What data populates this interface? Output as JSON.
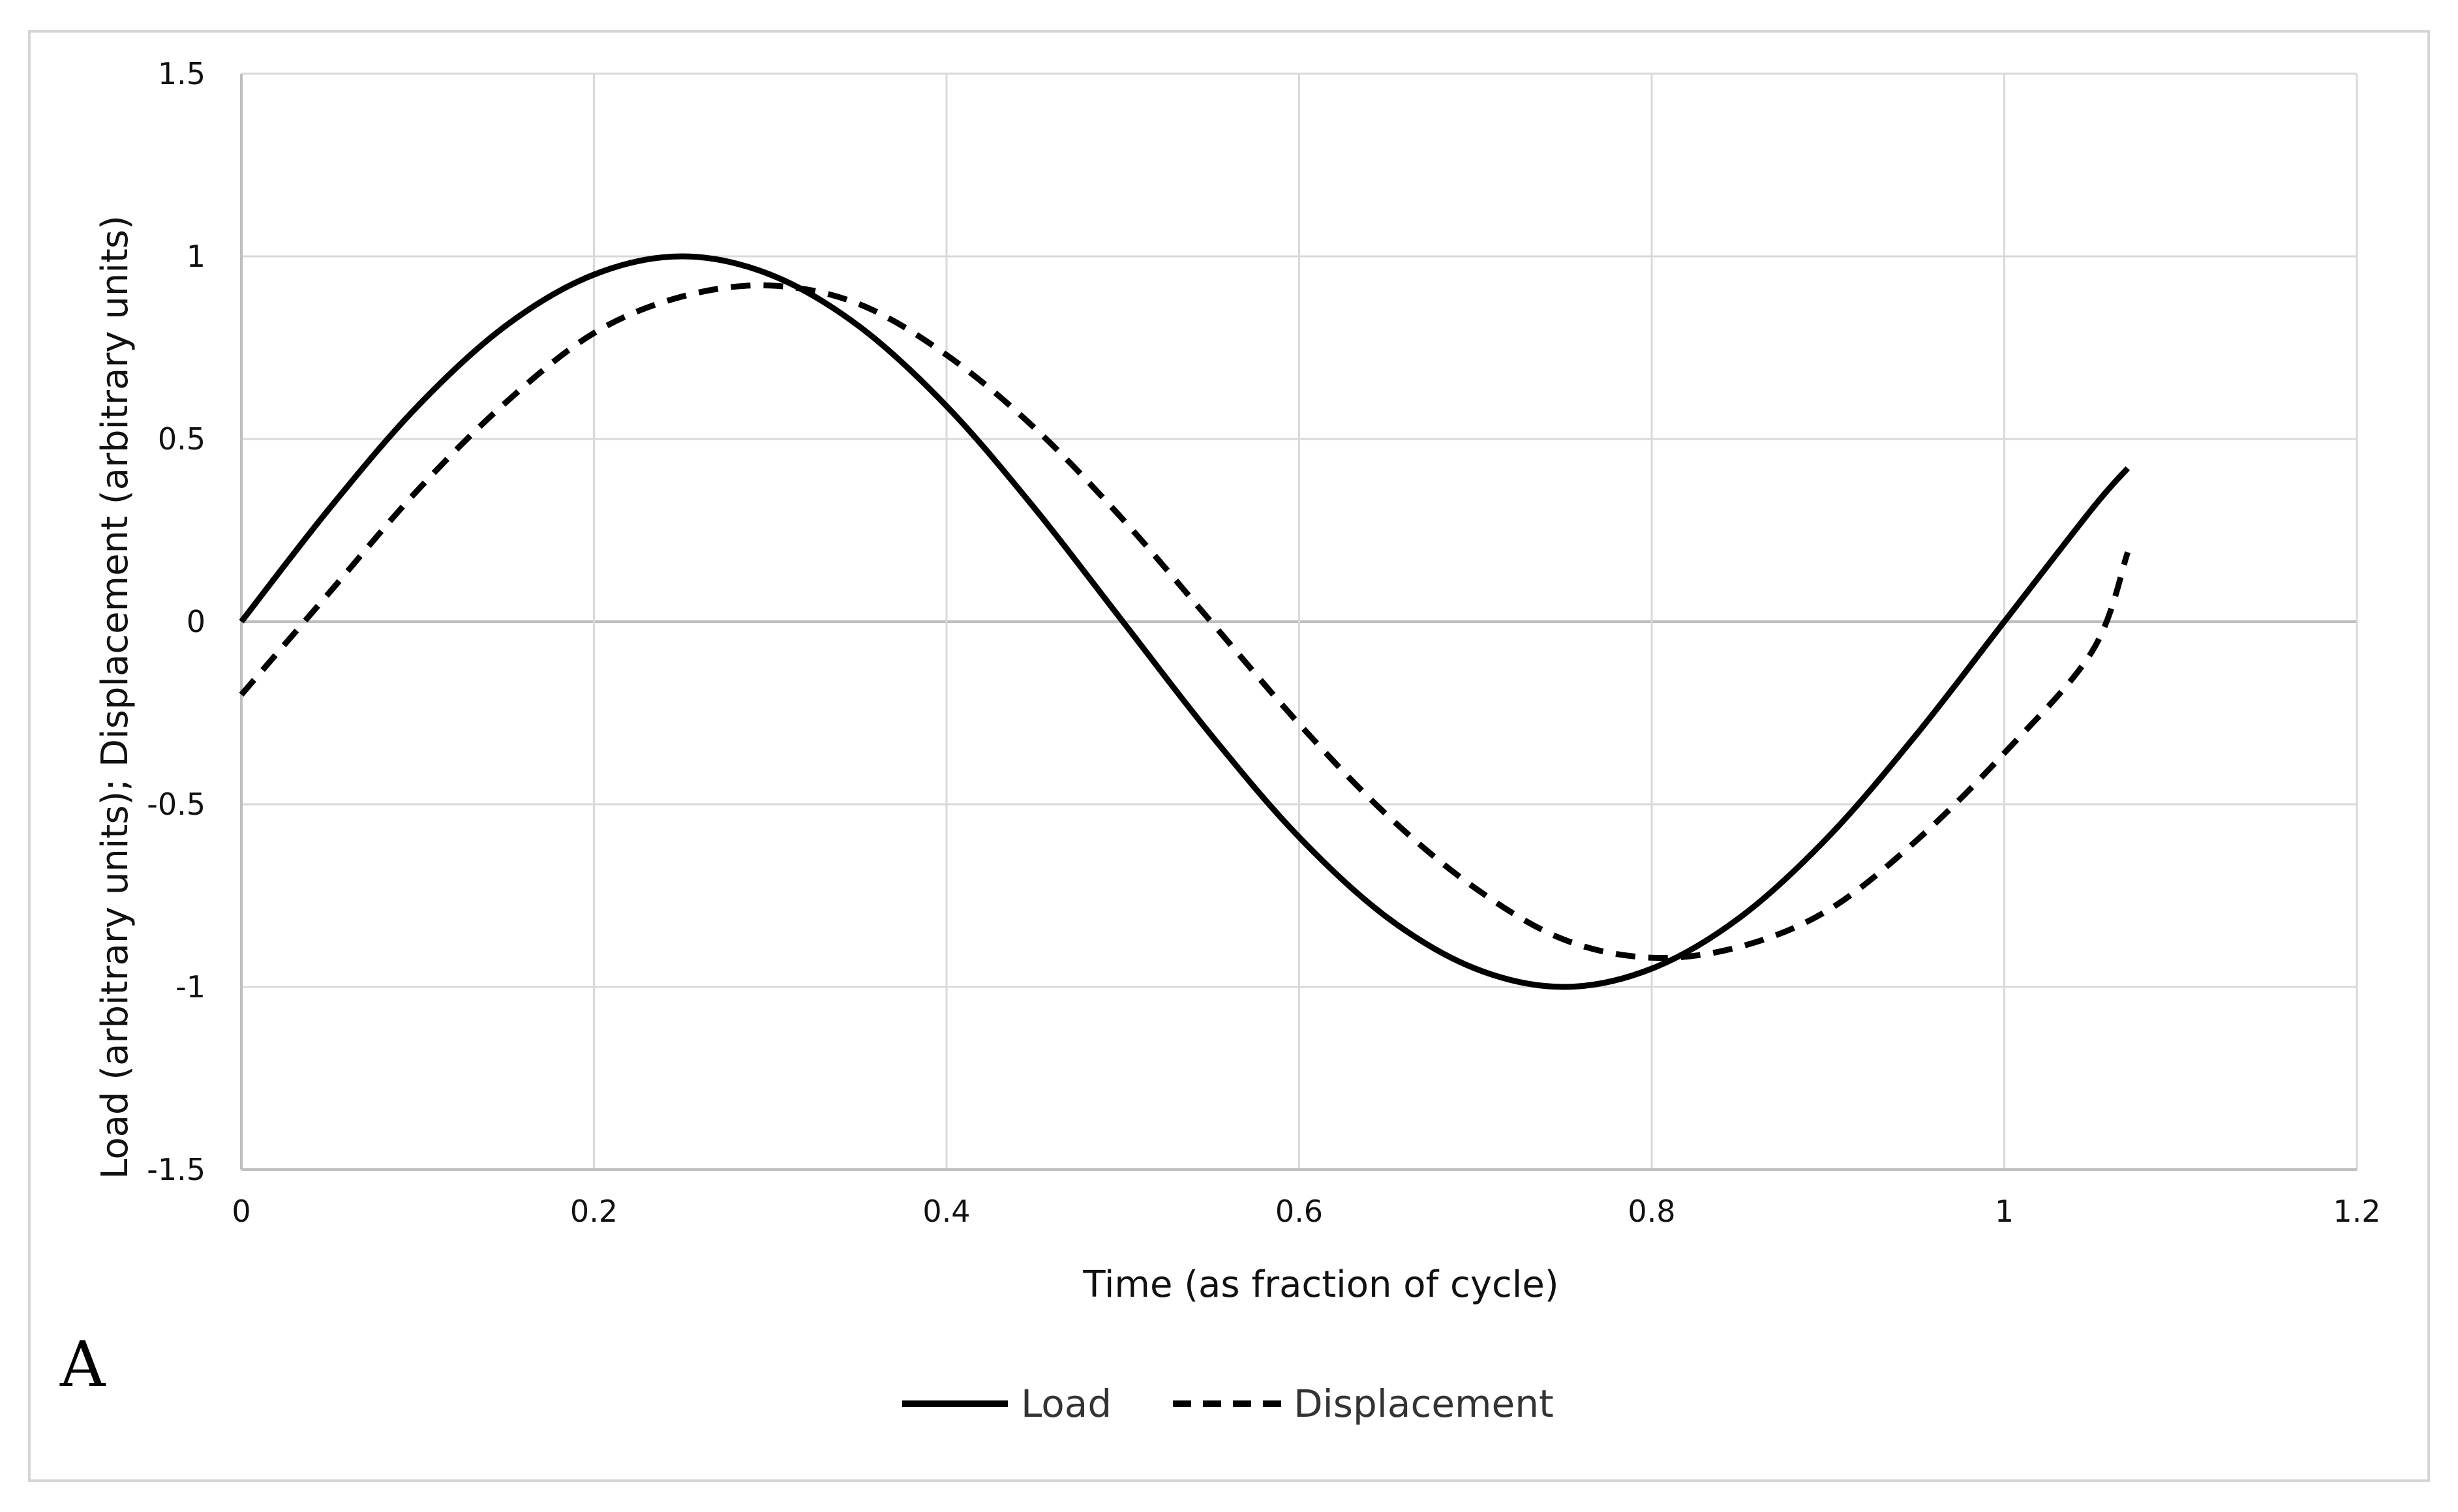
{
  "panel_label": "A",
  "chart_data": {
    "type": "line",
    "title": "",
    "xlabel": "Time (as fraction of cycle)",
    "ylabel": "Load (arbitrary units); Displacement (arbitrary units)",
    "xlim": [
      0,
      1.2
    ],
    "ylim": [
      -1.5,
      1.5
    ],
    "x_ticks": [
      0,
      0.2,
      0.4,
      0.6,
      0.8,
      1,
      1.2
    ],
    "x_tick_labels": [
      "0",
      "0.2",
      "0.4",
      "0.6",
      "0.8",
      "1",
      "1.2"
    ],
    "y_ticks": [
      1.5,
      1,
      0.5,
      0,
      -0.5,
      -1,
      -1.5
    ],
    "y_tick_labels": [
      "1.5",
      "1",
      "0.5",
      "0",
      "-0.5",
      "-1",
      "-1.5"
    ],
    "grid": true,
    "legend_position": "bottom",
    "series": [
      {
        "name": "Load",
        "style": "solid",
        "color": "#000000",
        "x": [
          0,
          0.05,
          0.1,
          0.15,
          0.2,
          0.25,
          0.3,
          0.35,
          0.4,
          0.45,
          0.5,
          0.55,
          0.6,
          0.65,
          0.7,
          0.75,
          0.8,
          0.85,
          0.9,
          0.95,
          1.0,
          1.05,
          1.07
        ],
        "y": [
          0,
          0.31,
          0.59,
          0.81,
          0.95,
          1.0,
          0.95,
          0.81,
          0.59,
          0.31,
          0,
          -0.31,
          -0.59,
          -0.81,
          -0.95,
          -1.0,
          -0.95,
          -0.81,
          -0.59,
          -0.31,
          0,
          0.31,
          0.42
        ]
      },
      {
        "name": "Displacement",
        "style": "dashed",
        "color": "#000000",
        "x": [
          0,
          0.05,
          0.1,
          0.15,
          0.2,
          0.25,
          0.3,
          0.35,
          0.4,
          0.45,
          0.5,
          0.55,
          0.6,
          0.65,
          0.7,
          0.75,
          0.8,
          0.85,
          0.9,
          0.95,
          1.0,
          1.05,
          1.07
        ],
        "y": [
          -0.2,
          0.08,
          0.36,
          0.6,
          0.79,
          0.89,
          0.92,
          0.87,
          0.73,
          0.53,
          0.28,
          0,
          -0.28,
          -0.53,
          -0.73,
          -0.87,
          -0.92,
          -0.89,
          -0.79,
          -0.6,
          -0.36,
          -0.08,
          0.19
        ]
      }
    ]
  }
}
